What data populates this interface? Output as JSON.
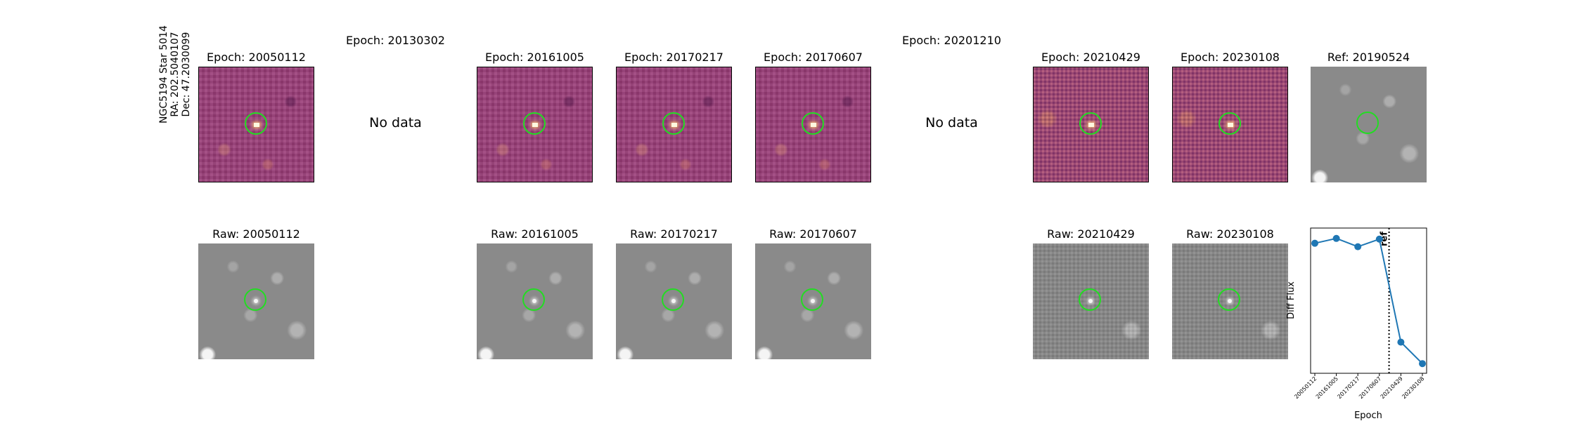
{
  "star": {
    "name": "NGC5194 Star 5014",
    "ra": "RA: 202.5040107",
    "dec": "Dec: 47.2030099"
  },
  "top_row": {
    "titles": [
      "Epoch: 20050112",
      "Epoch: 20130302",
      "Epoch: 20161005",
      "Epoch: 20170217",
      "Epoch: 20170607",
      "Epoch: 20201210",
      "Epoch: 20210429",
      "Epoch: 20230108",
      "Ref: 20190524"
    ],
    "no_data": [
      "No data",
      "No data"
    ]
  },
  "bottom_row": {
    "titles": [
      "Raw: 20050112",
      "Raw: 20161005",
      "Raw: 20170217",
      "Raw: 20170607",
      "Raw: 20210429",
      "Raw: 20230108"
    ]
  },
  "colors": {
    "series": "#1f77b4",
    "aperture": "#22dd22"
  },
  "chart_data": {
    "type": "line",
    "title": "",
    "xlabel": "Epoch",
    "ylabel": "Diff Flux",
    "categories": [
      "20050112",
      "20161005",
      "20170217",
      "20170607",
      "20210429",
      "20230108"
    ],
    "values": [
      0.88,
      0.95,
      0.83,
      0.94,
      -0.55,
      -0.86
    ],
    "ylim": [
      -1.0,
      1.1
    ],
    "ref_line": {
      "after_index": 3.45,
      "label": "ref",
      "style": "dotted"
    },
    "grid": false,
    "y_ticks_shown": false
  }
}
